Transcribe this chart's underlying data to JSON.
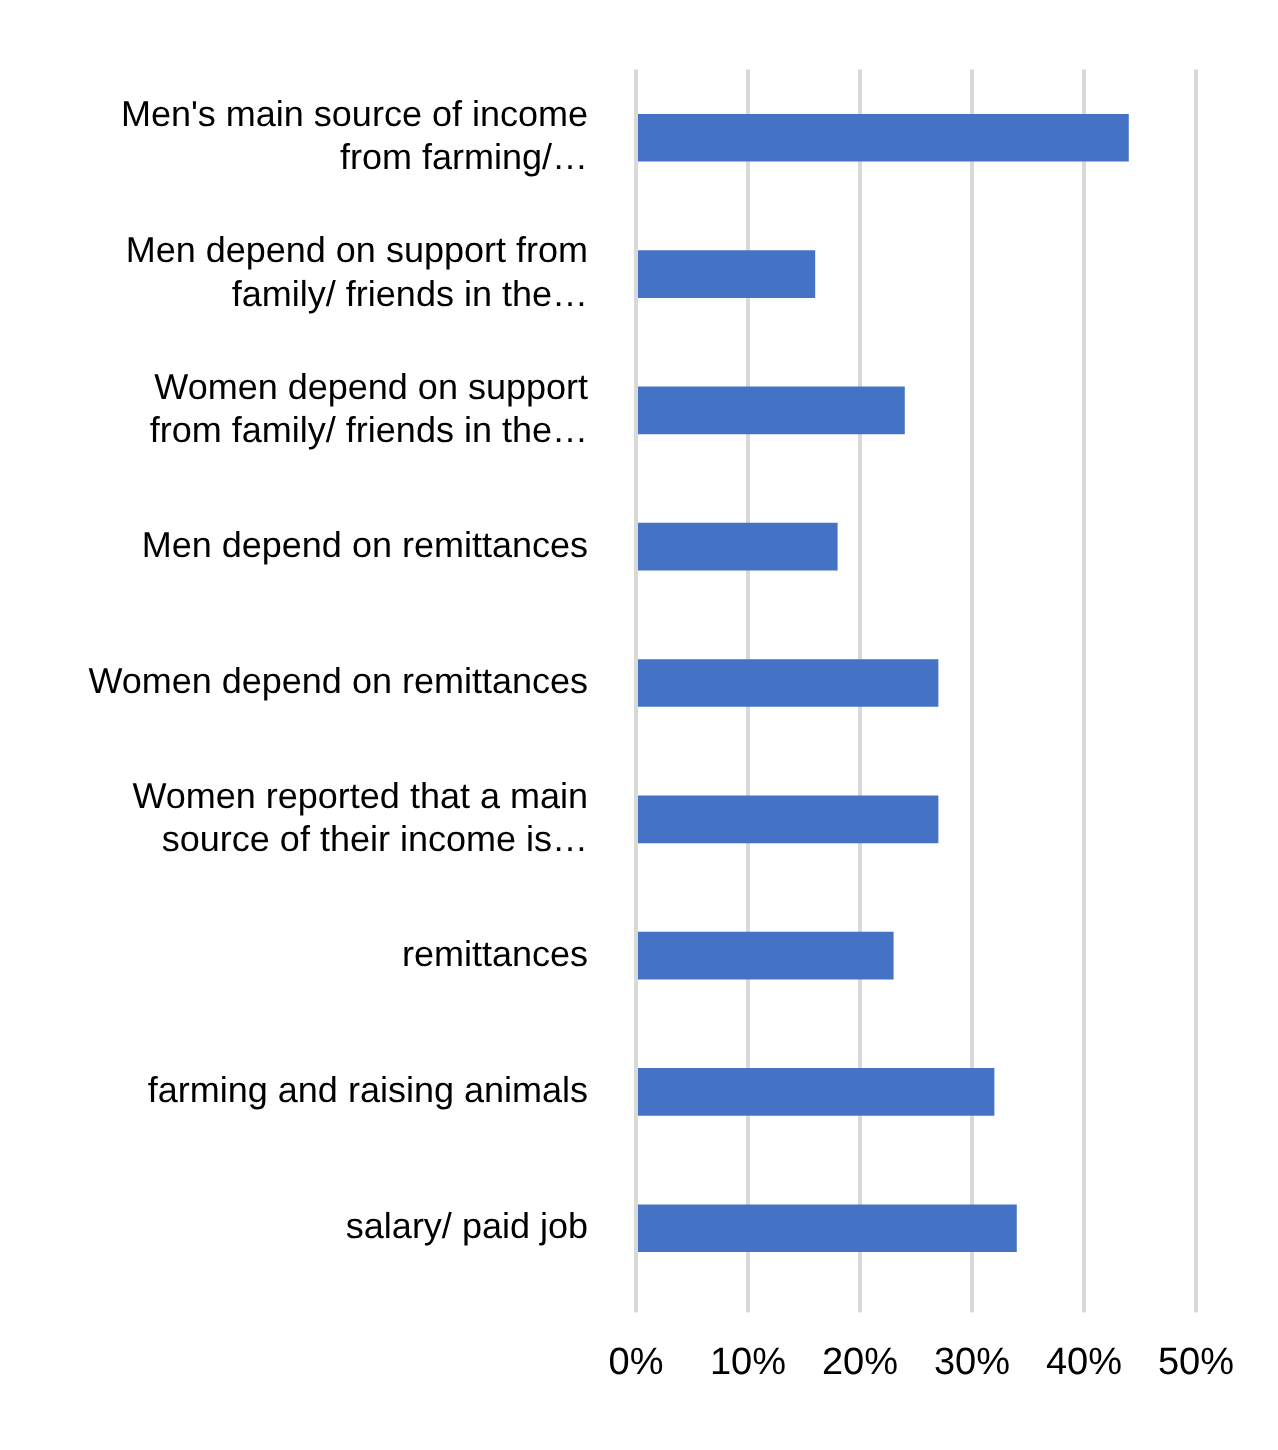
{
  "chart_data": {
    "type": "bar",
    "orientation": "horizontal",
    "categories": [
      "Men's main source of income from farming/…",
      "Men depend on support from family/ friends in the…",
      "Women depend on support from family/ friends in the…",
      "Men depend on remittances",
      "Women depend on remittances",
      "Women reported that a main source of their income is…",
      "remittances",
      "farming and raising animals",
      "salary/ paid job"
    ],
    "values": [
      44,
      16,
      24,
      18,
      27,
      27,
      23,
      32,
      34
    ],
    "color": "#4472c4",
    "xlim": [
      0,
      50
    ],
    "xticks": [
      {
        "value": 0,
        "label": "0%"
      },
      {
        "value": 10,
        "label": "10%"
      },
      {
        "value": 20,
        "label": "20%"
      },
      {
        "value": 30,
        "label": "30%"
      },
      {
        "value": 40,
        "label": "40%"
      },
      {
        "value": 50,
        "label": "50%"
      }
    ],
    "grid": "x",
    "legend": false
  }
}
